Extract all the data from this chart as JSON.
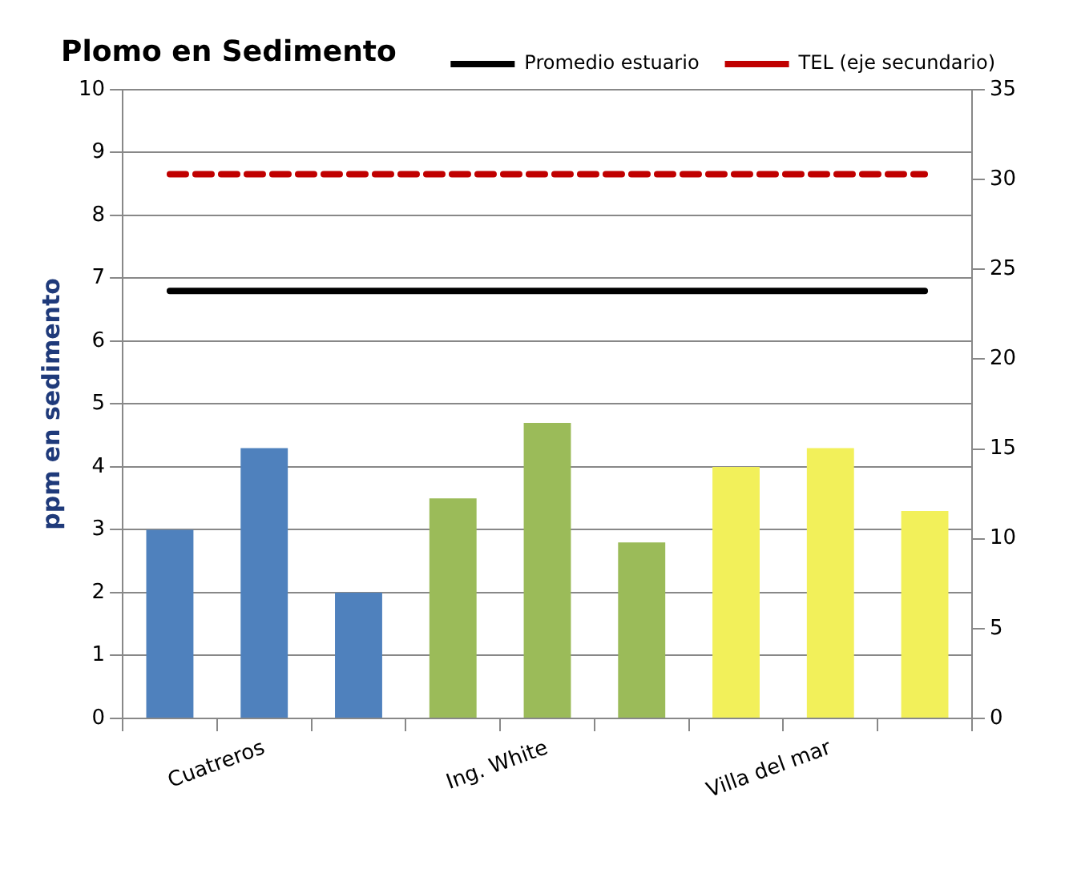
{
  "chart_data": {
    "type": "bar",
    "title": "Plomo en Sedimento",
    "ylabel": "ppm en sedimento",
    "categories": [
      null,
      "Cuatreros",
      null,
      null,
      "Ing. White",
      null,
      null,
      "Villa del mar",
      null
    ],
    "series": [
      {
        "colors": [
          "#4f81bd",
          "#4f81bd",
          "#4f81bd",
          "#9bbb59",
          "#9bbb59",
          "#9bbb59",
          "#f2f05a",
          "#f2f05a",
          "#f2f05a"
        ],
        "values": [
          3.0,
          4.3,
          2.0,
          3.5,
          4.7,
          2.8,
          4.0,
          4.3,
          3.3
        ]
      },
      {
        "type": "line",
        "name": "Promedio estuario",
        "color": "#000000",
        "values": [
          6.8,
          6.8,
          6.8,
          6.8,
          6.8,
          6.8,
          6.8,
          6.8,
          6.8
        ]
      },
      {
        "type": "line",
        "name": "TEL (eje secundario)",
        "color": "#c00000",
        "axis": "y2",
        "line_style": "dashed",
        "values": [
          30.3,
          30.3,
          30.3,
          30.3,
          30.3,
          30.3,
          30.3,
          30.3,
          30.3
        ]
      }
    ],
    "ylim": [
      0,
      10
    ],
    "yticks": [
      0,
      1,
      2,
      3,
      4,
      5,
      6,
      7,
      8,
      9,
      10
    ],
    "y2lim": [
      0,
      35
    ],
    "y2ticks": [
      0,
      5,
      10,
      15,
      20,
      25,
      30,
      35
    ],
    "grid": "y",
    "legend": "top right",
    "marker": "none"
  }
}
